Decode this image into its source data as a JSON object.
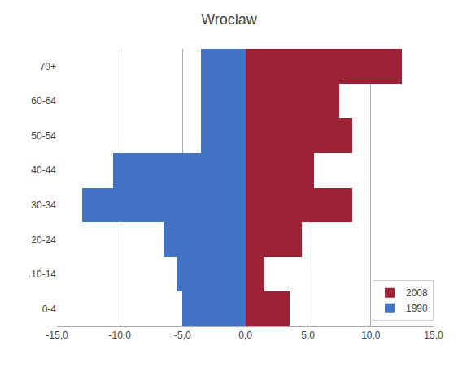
{
  "chart_data": {
    "type": "bar",
    "orientation": "horizontal",
    "title": "Wroclaw",
    "categories": [
      "0-4",
      ".10-14",
      "20-24",
      "30-34",
      "40-44",
      "50-54",
      "60-64",
      "70+"
    ],
    "series": [
      {
        "name": "1990",
        "color": "#4472C4",
        "values": [
          -5.0,
          -5.5,
          -6.5,
          -13.0,
          -10.5,
          -3.5,
          -3.5,
          -3.5
        ]
      },
      {
        "name": "2008",
        "color": "#9B2335",
        "values": [
          3.5,
          1.5,
          4.5,
          8.5,
          5.5,
          8.5,
          7.5,
          12.5
        ]
      }
    ],
    "xlim": [
      -15,
      15
    ],
    "xticks": [
      {
        "value": -15,
        "label": "-15,0"
      },
      {
        "value": -10,
        "label": "-10,0"
      },
      {
        "value": -5,
        "label": "-5,0"
      },
      {
        "value": 0,
        "label": "0,0"
      },
      {
        "value": 5,
        "label": "5,0"
      },
      {
        "value": 10,
        "label": "10,0"
      },
      {
        "value": 15,
        "label": "15,0"
      }
    ],
    "grid": true,
    "legend": "lower right"
  }
}
